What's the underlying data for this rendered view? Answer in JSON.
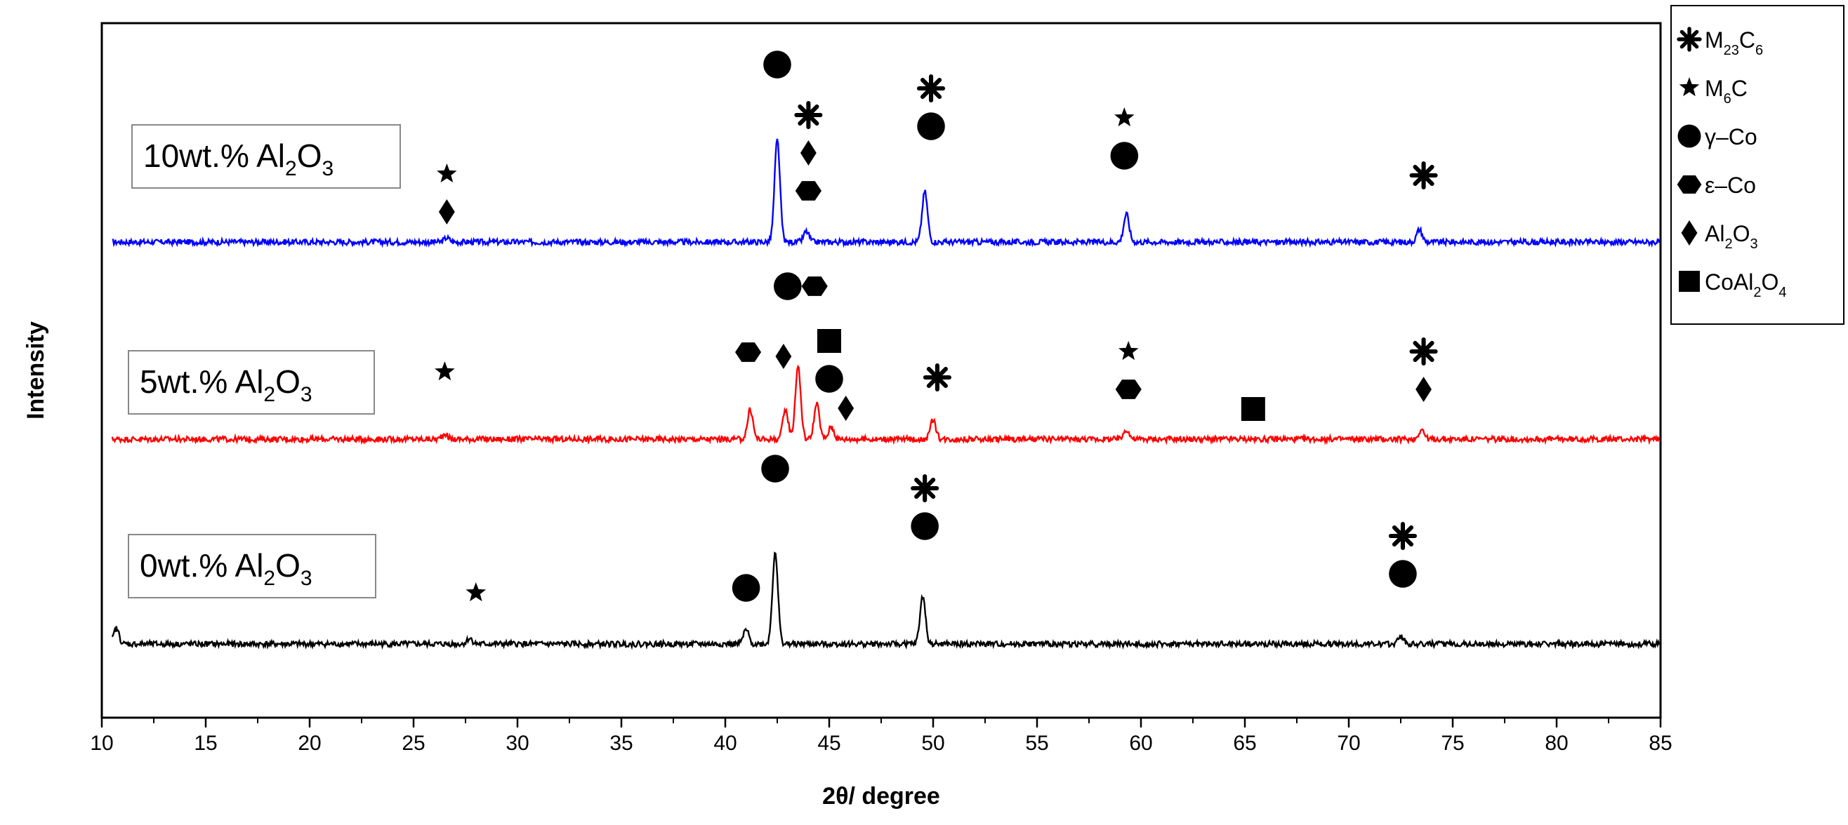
{
  "chart_data": {
    "type": "line",
    "xlabel": "2θ/ degree",
    "ylabel": "Intensity",
    "xlim": [
      10,
      85
    ],
    "xticks": [
      "10",
      "15",
      "20",
      "25",
      "30",
      "35",
      "40",
      "45",
      "50",
      "55",
      "60",
      "65",
      "70",
      "75",
      "80",
      "85"
    ],
    "grid": false,
    "legend_position": "right",
    "legend": [
      {
        "marker": "asterisk",
        "text": "M23C6",
        "parts": [
          "M",
          "23",
          "C",
          "6"
        ]
      },
      {
        "marker": "star",
        "text": "M6C",
        "parts": [
          "M",
          "6",
          "C",
          ""
        ]
      },
      {
        "marker": "circle",
        "text": "γ–Co",
        "parts": [
          "γ–Co",
          "",
          "",
          ""
        ]
      },
      {
        "marker": "hexagon",
        "text": "ε–Co",
        "parts": [
          "ε–Co",
          "",
          "",
          ""
        ]
      },
      {
        "marker": "diamond",
        "text": "Al2O3",
        "parts": [
          "Al",
          "2",
          "O",
          "3"
        ]
      },
      {
        "marker": "square",
        "text": "CoAl2O4",
        "parts": [
          "CoAl",
          "2",
          "O",
          "4"
        ]
      }
    ],
    "series": [
      {
        "label": "10wt.% Al2O3",
        "label_parts": [
          "10wt.%  Al",
          "2",
          "O",
          "3"
        ],
        "color": "#0000ff",
        "peaks": [
          [
            26.6,
            6
          ],
          [
            42.5,
            145
          ],
          [
            43.9,
            15
          ],
          [
            49.6,
            72
          ],
          [
            59.3,
            40
          ],
          [
            73.4,
            18
          ]
        ],
        "markers": [
          {
            "x": 26.6,
            "symbols": [
              "diamond",
              "star"
            ]
          },
          {
            "x": 42.5,
            "symbols": [
              "circle"
            ]
          },
          {
            "x": 44.0,
            "symbols": [
              "hexagon",
              "diamond",
              "asterisk"
            ]
          },
          {
            "x": 49.9,
            "symbols": [
              "circle",
              "asterisk"
            ]
          },
          {
            "x": 59.2,
            "symbols": [
              "circle",
              "star"
            ]
          },
          {
            "x": 73.6,
            "symbols": [
              "asterisk"
            ]
          }
        ]
      },
      {
        "label": "5wt.% Al2O3",
        "label_parts": [
          "5wt.%  Al",
          "2",
          "O",
          "3"
        ],
        "color": "#ff0000",
        "peaks": [
          [
            26.5,
            8
          ],
          [
            41.2,
            42
          ],
          [
            42.9,
            42
          ],
          [
            43.5,
            104
          ],
          [
            44.4,
            50
          ],
          [
            45.1,
            18
          ],
          [
            50.0,
            28
          ],
          [
            59.3,
            14
          ],
          [
            73.5,
            14
          ]
        ],
        "markers": [
          {
            "x": 26.5,
            "symbols": [
              "star"
            ]
          },
          {
            "x": 41.1,
            "symbols": [
              "hexagon"
            ]
          },
          {
            "x": 42.8,
            "symbols": [
              "diamond"
            ]
          },
          {
            "x": 43.0,
            "symbols": [
              "circle"
            ]
          },
          {
            "x": 44.3,
            "symbols": [
              "hexagon"
            ]
          },
          {
            "x": 45.0,
            "symbols": [
              "circle",
              "square"
            ]
          },
          {
            "x": 45.8,
            "symbols": [
              "diamond"
            ]
          },
          {
            "x": 50.2,
            "symbols": [
              "asterisk"
            ]
          },
          {
            "x": 59.4,
            "symbols": [
              "hexagon",
              "star"
            ]
          },
          {
            "x": 65.4,
            "symbols": [
              "square"
            ]
          },
          {
            "x": 73.6,
            "symbols": [
              "diamond",
              "asterisk"
            ]
          }
        ]
      },
      {
        "label": "0wt.% Al2O3",
        "label_parts": [
          "0wt.%  Al",
          "2",
          "O",
          "3"
        ],
        "color": "#000000",
        "peaks": [
          [
            10.7,
            22
          ],
          [
            27.7,
            8
          ],
          [
            41.0,
            20
          ],
          [
            42.4,
            132
          ],
          [
            49.5,
            68
          ],
          [
            72.5,
            12
          ]
        ],
        "markers": [
          {
            "x": 28.0,
            "symbols": [
              "star"
            ]
          },
          {
            "x": 41.0,
            "symbols": [
              "circle"
            ]
          },
          {
            "x": 42.4,
            "symbols": [
              "circle"
            ]
          },
          {
            "x": 49.6,
            "symbols": [
              "circle",
              "asterisk"
            ]
          },
          {
            "x": 72.6,
            "symbols": [
              "circle",
              "asterisk"
            ]
          }
        ]
      }
    ]
  }
}
